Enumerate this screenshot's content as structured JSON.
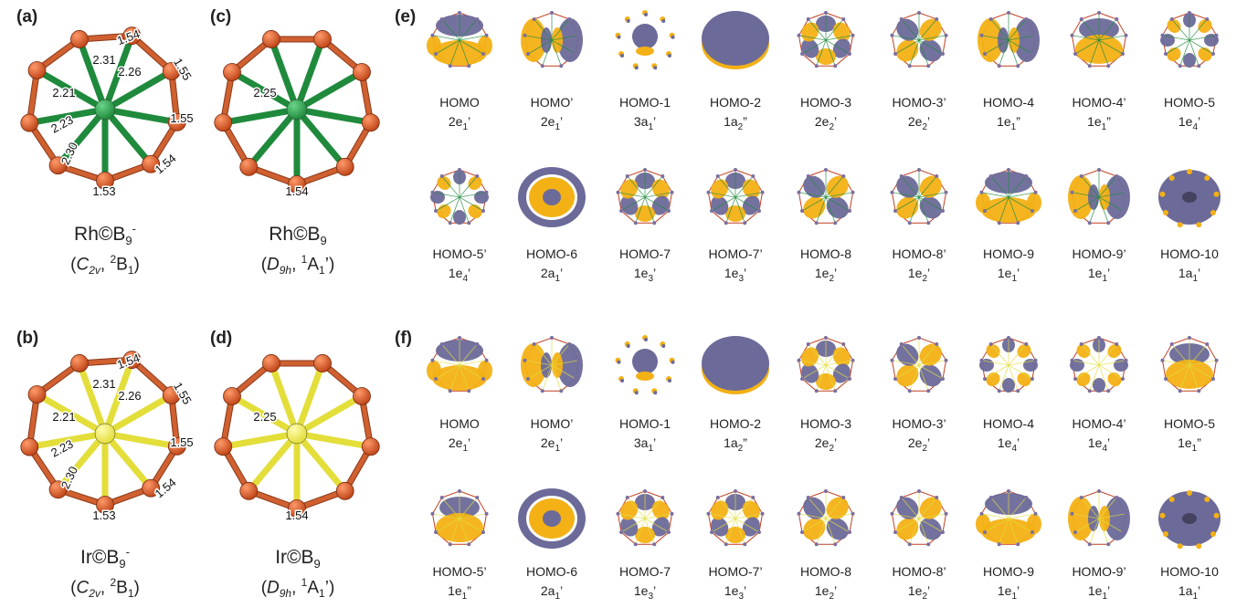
{
  "colors": {
    "boron": "#c0471a",
    "bond": "#d06030",
    "rh": "#1f8a3c",
    "ir": "#e3de3a",
    "lobe_pos": "#f3b115",
    "lobe_neg": "#6c6a99"
  },
  "panels": {
    "a": {
      "label": "(a)",
      "metal": "Rh",
      "formula": {
        "main": "Rh©B",
        "sub": "9",
        "sup": "-"
      },
      "state": {
        "symmetry_main": "C",
        "symmetry_sub": "2v",
        "sup": "2",
        "term": "B",
        "term_sub": "1",
        "prime": ""
      },
      "bond_labels": [
        "1.54",
        "1.55",
        "1.55",
        "1.54",
        "1.53",
        "2.31",
        "2.26",
        "2.21",
        "2.23",
        "2.30"
      ]
    },
    "b": {
      "label": "(b)",
      "metal": "Ir",
      "formula": {
        "main": "Ir©B",
        "sub": "9",
        "sup": "-"
      },
      "state": {
        "symmetry_main": "C",
        "symmetry_sub": "2v",
        "sup": "2",
        "term": "B",
        "term_sub": "1",
        "prime": ""
      },
      "bond_labels": [
        "1.54",
        "1.55",
        "1.55",
        "1.54",
        "1.53",
        "2.31",
        "2.26",
        "2.21",
        "2.23",
        "2.30"
      ]
    },
    "c": {
      "label": "(c)",
      "metal": "Rh",
      "formula": {
        "main": "Rh©B",
        "sub": "9",
        "sup": ""
      },
      "state": {
        "symmetry_main": "D",
        "symmetry_sub": "9h",
        "sup": "1",
        "term": "A",
        "term_sub": "1",
        "prime": "’"
      },
      "bond_labels": [
        "2.25",
        "1.54"
      ]
    },
    "d": {
      "label": "(d)",
      "metal": "Ir",
      "formula": {
        "main": "Ir©B",
        "sub": "9",
        "sup": ""
      },
      "state": {
        "symmetry_main": "D",
        "symmetry_sub": "9h",
        "sup": "1",
        "term": "A",
        "term_sub": "1",
        "prime": "’"
      },
      "bond_labels": [
        "2.25",
        "1.54"
      ]
    },
    "e": {
      "label": "(e)",
      "row1": [
        {
          "name": "HOMO",
          "sym": "2e",
          "sub": "1",
          "prime": "’"
        },
        {
          "name": "HOMO’",
          "sym": "2e",
          "sub": "1",
          "prime": "’"
        },
        {
          "name": "HOMO-1",
          "sym": "3a",
          "sub": "1",
          "prime": "’"
        },
        {
          "name": "HOMO-2",
          "sym": "1a",
          "sub": "2",
          "prime": "”"
        },
        {
          "name": "HOMO-3",
          "sym": "2e",
          "sub": "2",
          "prime": "’"
        },
        {
          "name": "HOMO-3’",
          "sym": "2e",
          "sub": "2",
          "prime": "’"
        },
        {
          "name": "HOMO-4",
          "sym": "1e",
          "sub": "1",
          "prime": "”"
        },
        {
          "name": "HOMO-4’",
          "sym": "1e",
          "sub": "1",
          "prime": "”"
        },
        {
          "name": "HOMO-5",
          "sym": "1e",
          "sub": "4",
          "prime": "’"
        }
      ],
      "row2": [
        {
          "name": "HOMO-5’",
          "sym": "1e",
          "sub": "4",
          "prime": "’"
        },
        {
          "name": "HOMO-6",
          "sym": "2a",
          "sub": "1",
          "prime": "’"
        },
        {
          "name": "HOMO-7",
          "sym": "1e",
          "sub": "3",
          "prime": "’"
        },
        {
          "name": "HOMO-7’",
          "sym": "1e",
          "sub": "3",
          "prime": "’"
        },
        {
          "name": "HOMO-8",
          "sym": "1e",
          "sub": "2",
          "prime": "’"
        },
        {
          "name": "HOMO-8’",
          "sym": "1e",
          "sub": "2",
          "prime": "’"
        },
        {
          "name": "HOMO-9",
          "sym": "1e",
          "sub": "1",
          "prime": "’"
        },
        {
          "name": "HOMO-9’",
          "sym": "1e",
          "sub": "1",
          "prime": "’"
        },
        {
          "name": "HOMO-10",
          "sym": "1a",
          "sub": "1",
          "prime": "’"
        }
      ]
    },
    "f": {
      "label": "(f)",
      "row1": [
        {
          "name": "HOMO",
          "sym": "2e",
          "sub": "1",
          "prime": "’"
        },
        {
          "name": "HOMO’",
          "sym": "2e",
          "sub": "1",
          "prime": "’"
        },
        {
          "name": "HOMO-1",
          "sym": "3a",
          "sub": "1",
          "prime": "’"
        },
        {
          "name": "HOMO-2",
          "sym": "1a",
          "sub": "2",
          "prime": "”"
        },
        {
          "name": "HOMO-3",
          "sym": "2e",
          "sub": "2",
          "prime": "’"
        },
        {
          "name": "HOMO-3’",
          "sym": "2e",
          "sub": "2",
          "prime": "’"
        },
        {
          "name": "HOMO-4",
          "sym": "1e",
          "sub": "4",
          "prime": "’"
        },
        {
          "name": "HOMO-4’",
          "sym": "1e",
          "sub": "4",
          "prime": "’"
        },
        {
          "name": "HOMO-5",
          "sym": "1e",
          "sub": "1",
          "prime": "”"
        }
      ],
      "row2": [
        {
          "name": "HOMO-5’",
          "sym": "1e",
          "sub": "1",
          "prime": "”"
        },
        {
          "name": "HOMO-6",
          "sym": "2a",
          "sub": "1",
          "prime": "’"
        },
        {
          "name": "HOMO-7",
          "sym": "1e",
          "sub": "3",
          "prime": "’"
        },
        {
          "name": "HOMO-7’",
          "sym": "1e",
          "sub": "3",
          "prime": "’"
        },
        {
          "name": "HOMO-8",
          "sym": "1e",
          "sub": "2",
          "prime": "’"
        },
        {
          "name": "HOMO-8’",
          "sym": "1e",
          "sub": "2",
          "prime": "’"
        },
        {
          "name": "HOMO-9",
          "sym": "1e",
          "sub": "1",
          "prime": "’"
        },
        {
          "name": "HOMO-9’",
          "sym": "1e",
          "sub": "1",
          "prime": "’"
        },
        {
          "name": "HOMO-10",
          "sym": "1a",
          "sub": "1",
          "prime": "’"
        }
      ]
    }
  }
}
